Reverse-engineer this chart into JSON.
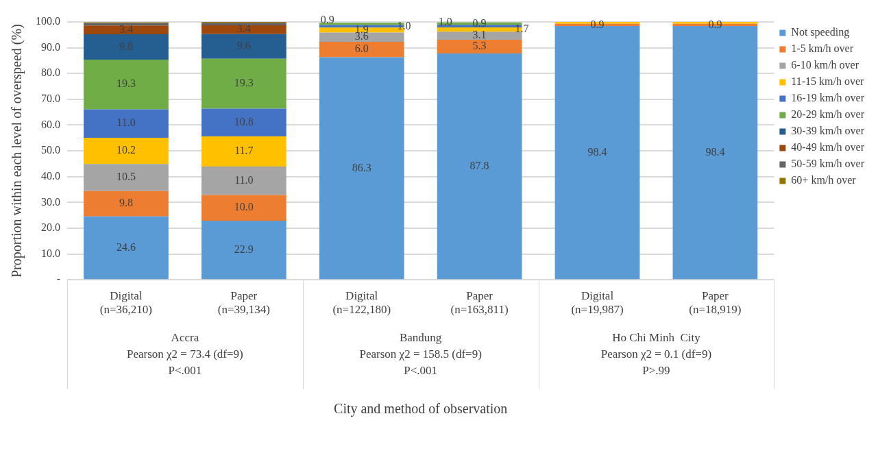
{
  "chart_data": {
    "type": "bar",
    "stacked": true,
    "ylabel": "Proportion within each level of overspeed (%)",
    "categories": [
      "Digital\n(n=36,210)",
      "Paper\n(n=39,134)",
      "Digital\n(n=122,180)",
      "Paper\n(n=163,811)",
      "Digital\n(n=19,987)",
      "Paper\n(n=18,919)"
    ],
    "annotations": [
      "Accra\nPearson χ2 = 73.4 (df=9)\nP<.001",
      "Bandung\nPearson χ2 = 158.5 (df=9)\nP<.001",
      "Ho Chi Minh  City\nPearson χ2 = 0.1 (df=9)\nP>.99",
      "City and method of observation"
    ],
    "ylim": [
      0,
      100
    ],
    "yticks": [
      {
        "value": 0,
        "label": "-"
      },
      {
        "value": 10,
        "label": "10.0"
      },
      {
        "value": 20,
        "label": "20.0"
      },
      {
        "value": 30,
        "label": "30.0"
      },
      {
        "value": 40,
        "label": "40.0"
      },
      {
        "value": 50,
        "label": "50.0"
      },
      {
        "value": 60,
        "label": "60.0"
      },
      {
        "value": 70,
        "label": "70.0"
      },
      {
        "value": 80,
        "label": "80.0"
      },
      {
        "value": 90,
        "label": "90.0"
      },
      {
        "value": 100,
        "label": "100.0"
      }
    ],
    "grid": "y",
    "legend": "right",
    "series": [
      {
        "name": "Not speeding",
        "color": "#5b9bd5",
        "values": [
          24.6,
          22.9,
          86.3,
          87.8,
          98.4,
          98.4
        ],
        "value_labels": [
          "24.6",
          "22.9",
          "86.3",
          "87.8",
          "98.4",
          "98.4"
        ]
      },
      {
        "name": "1-5 km/h over",
        "color": "#ed7d31",
        "values": [
          9.8,
          10.0,
          6.0,
          5.3,
          0.9,
          0.9
        ],
        "value_labels": [
          "9.8",
          "10.0",
          "6.0",
          "5.3",
          "0.9",
          "0.9"
        ]
      },
      {
        "name": "6-10 km/h over",
        "color": "#a5a5a5",
        "values": [
          10.5,
          11.0,
          3.6,
          3.1,
          null,
          null
        ],
        "value_labels": [
          "10.5",
          "11.0",
          "3.6",
          "3.1",
          null,
          null
        ]
      },
      {
        "name": "11-15 km/h over",
        "color": "#ffc000",
        "values": [
          10.2,
          11.7,
          1.9,
          1.7,
          0.7,
          0.7
        ],
        "value_labels": [
          "10.2",
          "11.7",
          "1.9",
          "1.7",
          null,
          null
        ]
      },
      {
        "name": "16-19 km/h over",
        "color": "#4472c4",
        "values": [
          11.0,
          10.8,
          1.0,
          1.0,
          null,
          null
        ],
        "value_labels": [
          "11.0",
          "10.8",
          "1.0",
          "1.0",
          null,
          null
        ]
      },
      {
        "name": "20-29 km/h over",
        "color": "#70ad47",
        "values": [
          19.3,
          19.3,
          0.9,
          0.9,
          null,
          null
        ],
        "value_labels": [
          "19.3",
          "19.3",
          "0.9",
          "0.9",
          null,
          null
        ]
      },
      {
        "name": "30-39 km/h over",
        "color": "#255e91",
        "values": [
          9.8,
          9.6,
          null,
          null,
          null,
          null
        ],
        "value_labels": [
          "9.8",
          "9.6",
          null,
          null,
          null,
          null
        ]
      },
      {
        "name": "40-49 km/h over",
        "color": "#9e480e",
        "values": [
          3.4,
          3.4,
          null,
          null,
          null,
          null
        ],
        "value_labels": [
          "3.4",
          "3.4",
          null,
          null,
          null,
          null
        ]
      },
      {
        "name": "50-59 km/h over",
        "color": "#636363",
        "values": [
          1.0,
          1.0,
          null,
          null,
          null,
          null
        ],
        "value_labels": [
          null,
          null,
          null,
          null,
          null,
          null
        ]
      },
      {
        "name": "60+ km/h over",
        "color": "#997300",
        "values": [
          0.3,
          0.3,
          null,
          null,
          null,
          null
        ],
        "value_labels": [
          null,
          null,
          null,
          null,
          null,
          null
        ]
      }
    ]
  }
}
